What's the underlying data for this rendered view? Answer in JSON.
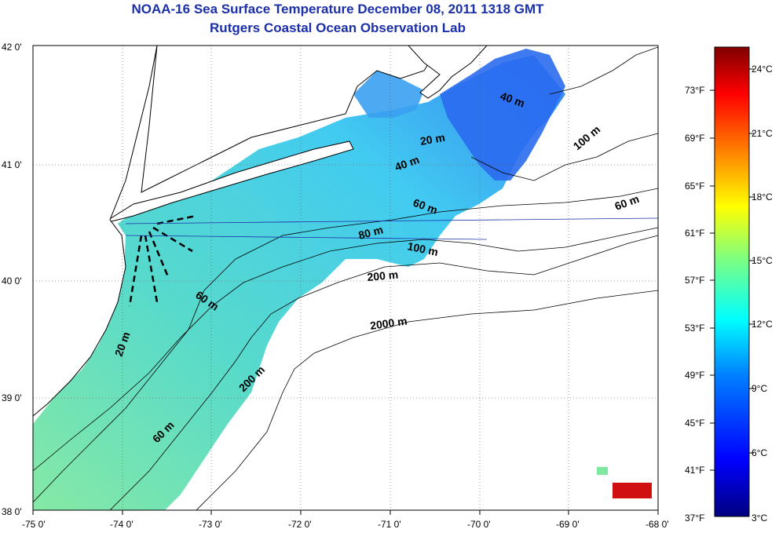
{
  "title": "NOAA-16 Sea Surface Temperature December 08, 2011 1318 GMT",
  "subtitle": "Rutgers Coastal Ocean Observation Lab",
  "lon_ticks": [
    "-75 0'",
    "-74 0'",
    "-73 0'",
    "-72 0'",
    "-71 0'",
    "-70 0'",
    "-69 0'",
    "-68 0'"
  ],
  "lat_ticks": [
    "42 0'",
    "41 0'",
    "40 0'",
    "39 0'",
    "38 0'"
  ],
  "colorbar": {
    "fahrenheit": [
      "73°F",
      "69°F",
      "65°F",
      "61°F",
      "57°F",
      "53°F",
      "49°F",
      "45°F",
      "41°F",
      "37°F"
    ],
    "celsius": [
      "24°C",
      "21°C",
      "18°C",
      "15°C",
      "12°C",
      "9°C",
      "6°C",
      "3°C"
    ],
    "colors": [
      "#00007f",
      "#0000ff",
      "#007fff",
      "#00ffff",
      "#7fff7f",
      "#ffff00",
      "#ff7f00",
      "#ff0000",
      "#7f0000"
    ]
  },
  "contour_labels": [
    "20 m",
    "40 m",
    "60 m",
    "80 m",
    "100 m",
    "200 m",
    "2000 m",
    "60 m",
    "200 m",
    "60 m",
    "20 m",
    "40 m",
    "100 m",
    "60 m"
  ],
  "colors": {
    "title": "#1b2fa8",
    "land": "#ffffff",
    "ocean_nodata": "#ffffff"
  }
}
